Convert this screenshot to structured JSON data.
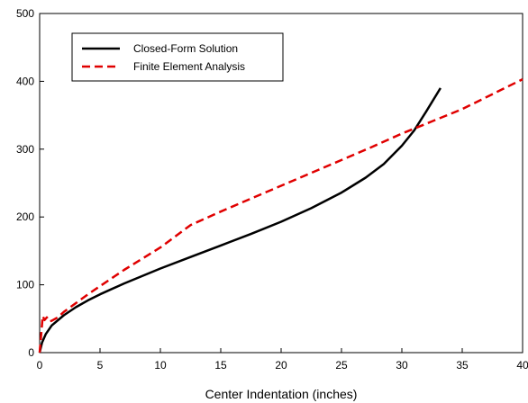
{
  "chart_data": {
    "type": "line",
    "title": "",
    "xlabel": "Center Indentation (inches)",
    "ylabel": "",
    "xlim": [
      0,
      40
    ],
    "ylim": [
      0,
      500
    ],
    "xticks": [
      0,
      5,
      10,
      15,
      20,
      25,
      30,
      35,
      40
    ],
    "yticks": [
      0,
      100,
      200,
      300,
      400,
      500
    ],
    "xtick_labels": [
      "0",
      "5",
      "10",
      "15",
      "20",
      "25",
      "30",
      "35",
      "40"
    ],
    "ytick_labels": [
      "0",
      "100",
      "200",
      "300",
      "400",
      "500"
    ],
    "grid": false,
    "legend_position": "top-left",
    "series": [
      {
        "name": "Closed-Form Solution",
        "color": "#000000",
        "style": "solid",
        "x": [
          0,
          0.2,
          0.5,
          1,
          2,
          3,
          4,
          5,
          7,
          10,
          12.5,
          15,
          17.5,
          20,
          22.5,
          25,
          27,
          28.5,
          30,
          31,
          32,
          33.2
        ],
        "y": [
          0,
          15,
          27,
          40,
          55,
          67,
          77,
          86,
          102,
          124,
          141,
          158,
          175,
          193,
          213,
          236,
          258,
          278,
          305,
          327,
          355,
          390
        ]
      },
      {
        "name": "Finite Element Analysis",
        "color": "#e00000",
        "style": "dashed",
        "x": [
          0,
          0.1,
          0.25,
          0.4,
          0.6,
          0.8,
          1,
          1.5,
          2,
          3,
          4,
          5,
          7,
          10,
          12.5,
          15,
          17.5,
          20,
          22.5,
          25,
          27.5,
          30,
          32.5,
          35,
          37.5,
          40
        ],
        "y": [
          0,
          20,
          54,
          48,
          52,
          46,
          47,
          52,
          60,
          73,
          86,
          98,
          122,
          155,
          188,
          208,
          227,
          246,
          265,
          284,
          303,
          323,
          341,
          359,
          381,
          403
        ]
      }
    ]
  }
}
